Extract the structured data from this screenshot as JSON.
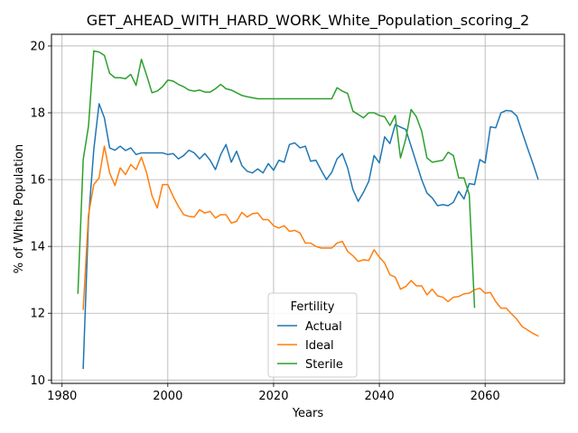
{
  "chart_data": {
    "type": "line",
    "title": "GET_AHEAD_WITH_HARD_WORK_White_Population_scoring_2",
    "xlabel": "Years",
    "ylabel": "% of White Population",
    "xlim": [
      1978,
      2075
    ],
    "ylim": [
      9.9,
      20.35
    ],
    "xticks": [
      1980,
      2000,
      2020,
      2040,
      2060
    ],
    "yticks": [
      10,
      12,
      14,
      16,
      18,
      20
    ],
    "grid": true,
    "legend": {
      "title": "Fertility",
      "position": "lower-center"
    },
    "colors": {
      "Actual": "#1f77b4",
      "Ideal": "#ff7f0e",
      "Sterile": "#2ca02c"
    },
    "series": [
      {
        "name": "Actual",
        "x": [
          1984,
          1985,
          1986,
          1987,
          1988,
          1989,
          1990,
          1991,
          1992,
          1993,
          1994,
          1995,
          1996,
          1997,
          1998,
          1999,
          2000,
          2001,
          2002,
          2003,
          2004,
          2005,
          2006,
          2007,
          2008,
          2009,
          2010,
          2011,
          2012,
          2013,
          2014,
          2015,
          2016,
          2017,
          2018,
          2019,
          2020,
          2021,
          2022,
          2023,
          2024,
          2025,
          2026,
          2027,
          2028,
          2029,
          2030,
          2031,
          2032,
          2033,
          2034,
          2035,
          2036,
          2037,
          2038,
          2039,
          2040,
          2041,
          2042,
          2043,
          2044,
          2045,
          2046,
          2047,
          2048,
          2049,
          2050,
          2051,
          2052,
          2053,
          2054,
          2055,
          2056,
          2057,
          2058,
          2059,
          2060,
          2061,
          2062,
          2063,
          2064,
          2065,
          2066,
          2067,
          2068,
          2069,
          2070
        ],
        "values": [
          10.35,
          14.8,
          16.9,
          18.27,
          17.85,
          16.95,
          16.88,
          17.0,
          16.87,
          16.95,
          16.75,
          16.8,
          16.8,
          16.8,
          16.8,
          16.8,
          16.75,
          16.78,
          16.62,
          16.72,
          16.88,
          16.8,
          16.62,
          16.78,
          16.58,
          16.3,
          16.75,
          17.05,
          16.52,
          16.85,
          16.42,
          16.25,
          16.2,
          16.32,
          16.2,
          16.48,
          16.28,
          16.58,
          16.52,
          17.05,
          17.1,
          16.95,
          17.0,
          16.55,
          16.58,
          16.28,
          16.0,
          16.22,
          16.62,
          16.78,
          16.35,
          15.7,
          15.35,
          15.62,
          15.95,
          16.72,
          16.5,
          17.28,
          17.08,
          17.65,
          17.57,
          17.5,
          17.0,
          16.5,
          16.0,
          15.6,
          15.45,
          15.22,
          15.25,
          15.22,
          15.32,
          15.65,
          15.42,
          15.88,
          15.85,
          16.6,
          16.5,
          17.58,
          17.55,
          18.0,
          18.07,
          18.05,
          17.9,
          17.42,
          16.95,
          16.5,
          16.02
        ]
      },
      {
        "name": "Ideal",
        "x": [
          1984,
          1985,
          1986,
          1987,
          1988,
          1989,
          1990,
          1991,
          1992,
          1993,
          1994,
          1995,
          1996,
          1997,
          1998,
          1999,
          2000,
          2001,
          2002,
          2003,
          2004,
          2005,
          2006,
          2007,
          2008,
          2009,
          2010,
          2011,
          2012,
          2013,
          2014,
          2015,
          2016,
          2017,
          2018,
          2019,
          2020,
          2021,
          2022,
          2023,
          2024,
          2025,
          2026,
          2027,
          2028,
          2029,
          2030,
          2031,
          2032,
          2033,
          2034,
          2035,
          2036,
          2037,
          2038,
          2039,
          2040,
          2041,
          2042,
          2043,
          2044,
          2045,
          2046,
          2047,
          2048,
          2049,
          2050,
          2051,
          2052,
          2053,
          2054,
          2055,
          2056,
          2057,
          2058,
          2059,
          2060,
          2061,
          2062,
          2063,
          2064,
          2065,
          2066,
          2067,
          2068,
          2069,
          2070
        ],
        "values": [
          12.12,
          14.95,
          15.85,
          16.05,
          17.0,
          16.2,
          15.82,
          16.35,
          16.15,
          16.45,
          16.3,
          16.67,
          16.2,
          15.52,
          15.15,
          15.85,
          15.85,
          15.5,
          15.2,
          14.95,
          14.9,
          14.88,
          15.1,
          15.0,
          15.05,
          14.85,
          14.95,
          14.95,
          14.7,
          14.75,
          15.02,
          14.88,
          14.98,
          15.0,
          14.8,
          14.8,
          14.62,
          14.55,
          14.62,
          14.45,
          14.48,
          14.4,
          14.1,
          14.1,
          14.0,
          13.95,
          13.95,
          13.95,
          14.1,
          14.15,
          13.85,
          13.72,
          13.55,
          13.6,
          13.58,
          13.9,
          13.68,
          13.5,
          13.15,
          13.08,
          12.72,
          12.8,
          12.98,
          12.82,
          12.82,
          12.55,
          12.72,
          12.52,
          12.48,
          12.35,
          12.48,
          12.5,
          12.58,
          12.6,
          12.7,
          12.75,
          12.6,
          12.62,
          12.35,
          12.15,
          12.15,
          11.98,
          11.82,
          11.6,
          11.5,
          11.4,
          11.32
        ]
      },
      {
        "name": "Sterile",
        "x": [
          1983,
          1984,
          1985,
          1986,
          1987,
          1988,
          1989,
          1990,
          1991,
          1992,
          1993,
          1994,
          1995,
          1996,
          1997,
          1998,
          1999,
          2000,
          2001,
          2002,
          2003,
          2004,
          2005,
          2006,
          2007,
          2008,
          2009,
          2010,
          2011,
          2012,
          2013,
          2014,
          2015,
          2016,
          2017,
          2018,
          2019,
          2020,
          2021,
          2022,
          2023,
          2024,
          2025,
          2026,
          2027,
          2028,
          2029,
          2030,
          2031,
          2032,
          2033,
          2034,
          2035,
          2036,
          2037,
          2038,
          2039,
          2040,
          2041,
          2042,
          2043,
          2044,
          2045,
          2046,
          2047,
          2048,
          2049,
          2050,
          2051,
          2052,
          2053,
          2054,
          2055,
          2056,
          2057,
          2058
        ],
        "values": [
          12.6,
          16.6,
          17.6,
          19.85,
          19.82,
          19.72,
          19.18,
          19.05,
          19.05,
          19.02,
          19.15,
          18.82,
          19.6,
          19.12,
          18.6,
          18.65,
          18.78,
          18.98,
          18.95,
          18.85,
          18.78,
          18.68,
          18.65,
          18.68,
          18.62,
          18.62,
          18.72,
          18.85,
          18.72,
          18.68,
          18.6,
          18.52,
          18.48,
          18.45,
          18.42,
          18.42,
          18.42,
          18.42,
          18.42,
          18.42,
          18.42,
          18.42,
          18.42,
          18.42,
          18.42,
          18.42,
          18.42,
          18.42,
          18.42,
          18.75,
          18.65,
          18.58,
          18.05,
          17.95,
          17.85,
          18.0,
          18.0,
          17.92,
          17.88,
          17.62,
          17.92,
          16.65,
          17.22,
          18.1,
          17.88,
          17.45,
          16.65,
          16.52,
          16.55,
          16.58,
          16.82,
          16.72,
          16.05,
          16.05,
          15.55,
          12.18
        ]
      }
    ]
  }
}
